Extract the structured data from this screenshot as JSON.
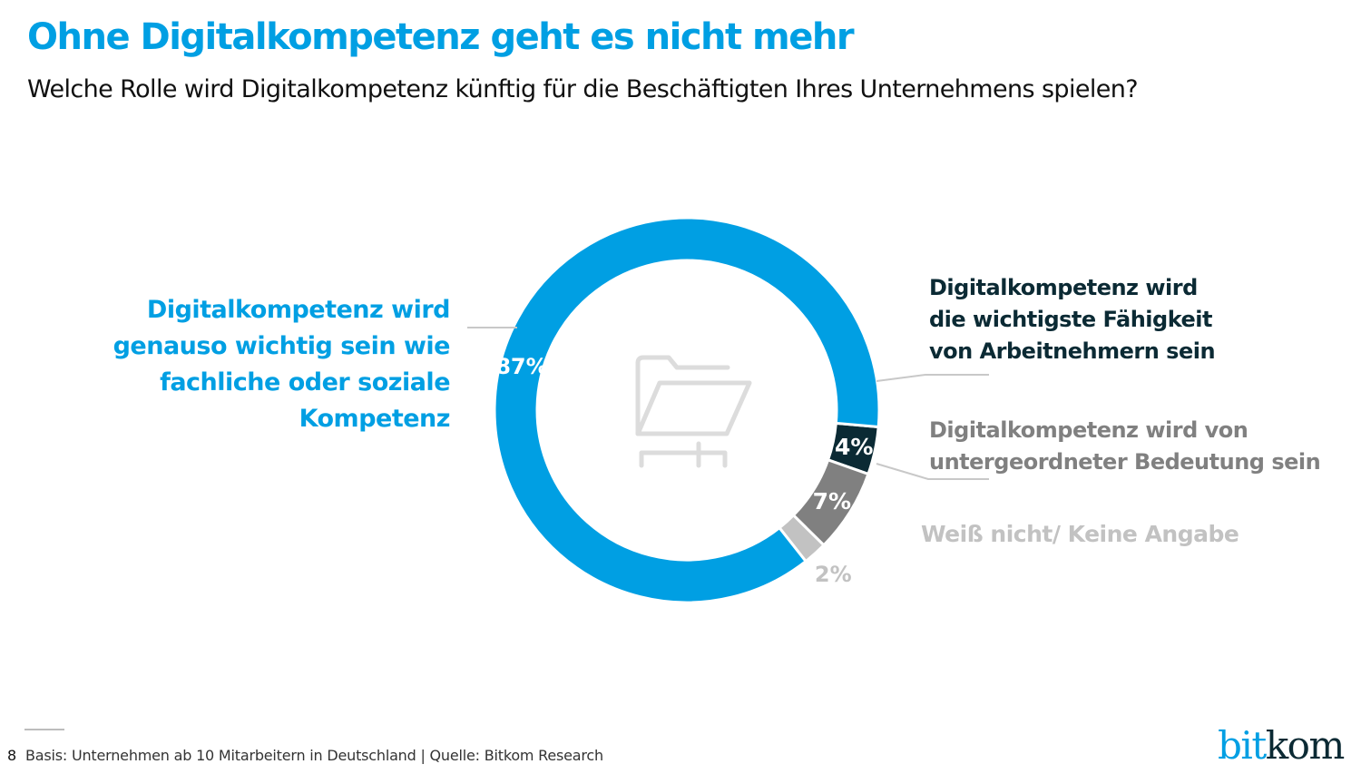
{
  "header": {
    "title": "Ohne Digitalkompetenz geht es nicht mehr",
    "subtitle": "Welche Rolle wird Digitalkompetenz künftig für die Beschäftigten Ihres Unternehmens spielen?"
  },
  "chart_data": {
    "type": "pie",
    "variant": "donut",
    "title": "Ohne Digitalkompetenz geht es nicht mehr",
    "subtitle": "Welche Rolle wird Digitalkompetenz künftig für die Beschäftigten Ihres Unternehmens spielen?",
    "slices": [
      {
        "label": "Digitalkompetenz wird die wichtigste Fähigkeit von Arbeitnehmern sein",
        "value": 4,
        "value_label": "4%",
        "color": "#0b2a34"
      },
      {
        "label": "Digitalkompetenz wird von untergeordneter Bedeutung sein",
        "value": 7,
        "value_label": "7%",
        "color": "#808080"
      },
      {
        "label": "Weiß nicht/ Keine Angabe",
        "value": 2,
        "value_label": "2%",
        "color": "#c2c2c2"
      },
      {
        "label": "Digitalkompetenz wird genauso wichtig sein wie fachliche oder soziale Kompetenz",
        "value": 87,
        "value_label": "87%",
        "color": "#009fe3"
      }
    ],
    "legend": "callout-labels",
    "center_icon": "folder-network-icon"
  },
  "labels": {
    "main": [
      "Digitalkompetenz wird",
      "genauso wichtig sein wie",
      "fachliche oder soziale",
      "Kompetenz"
    ],
    "top": [
      "Digitalkompetenz wird",
      "die wichtigste Fähigkeit",
      "von Arbeitnehmern sein"
    ],
    "low": [
      "Digitalkompetenz wird von",
      "untergeordneter Bedeutung sein"
    ],
    "dk": "Weiß nicht/ Keine Angabe"
  },
  "footer": {
    "page_number": "8",
    "source": "Basis: Unternehmen ab 10 Mitarbeitern in Deutschland | Quelle: Bitkom Research",
    "logo_part1": "bit",
    "logo_part2": "kom"
  }
}
